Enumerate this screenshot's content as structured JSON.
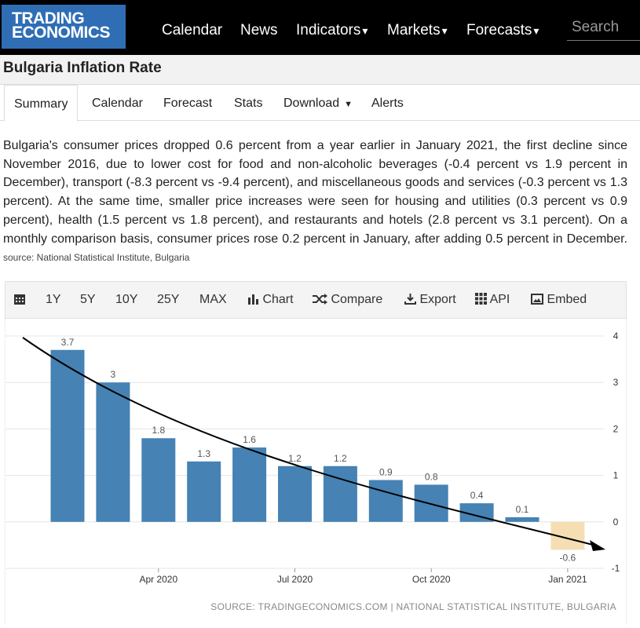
{
  "logo": {
    "line1": "TRADING",
    "line2": "ECONOMICS"
  },
  "nav": {
    "items": [
      "Calendar",
      "News",
      "Indicators",
      "Markets",
      "Forecasts"
    ],
    "caret": "▾",
    "search_placeholder": "Search"
  },
  "page_title": "Bulgaria Inflation Rate",
  "tabs": [
    "Summary",
    "Calendar",
    "Forecast",
    "Stats",
    "Download",
    "Alerts"
  ],
  "summary": {
    "text": "Bulgaria's consumer prices dropped 0.6 percent from a year earlier in January 2021, the first decline since November 2016, due to lower cost for food and non-alcoholic beverages (-0.4 percent vs 1.9 percent in December), transport (-8.3 percent vs -9.4 percent), and miscellaneous goods and services (-0.3 percent vs 1.3 percent). At the same time, smaller price increases were seen for housing and utilities (0.3 percent vs 0.9 percent), health (1.5 percent vs 1.8 percent), and restaurants and hotels (2.8 percent vs 3.1 percent). On a monthly comparison basis, consumer prices rose 0.2 percent in January, after adding 0.5 percent in December.",
    "source": "source: National Statistical Institute, Bulgaria"
  },
  "toolbar": {
    "ranges": [
      "1Y",
      "5Y",
      "10Y",
      "25Y",
      "MAX"
    ],
    "chart": "Chart",
    "compare": "Compare",
    "export": "Export",
    "api": "API",
    "embed": "Embed"
  },
  "colors": {
    "bar": "#4682b4",
    "bar_negative": "#f5deb3",
    "logo_bg": "#2f6eb5"
  },
  "chart_data": {
    "type": "bar",
    "categories": [
      "Feb 2020",
      "Mar 2020",
      "Apr 2020",
      "May 2020",
      "Jun 2020",
      "Jul 2020",
      "Aug 2020",
      "Sep 2020",
      "Oct 2020",
      "Nov 2020",
      "Dec 2020",
      "Jan 2021"
    ],
    "values": [
      3.7,
      3,
      1.8,
      1.3,
      1.6,
      1.2,
      1.2,
      0.9,
      0.8,
      0.4,
      0.1,
      -0.6
    ],
    "data_labels": [
      "3.7",
      "3",
      "1.8",
      "1.3",
      "1.6",
      "1.2",
      "1.2",
      "0.9",
      "0.8",
      "0.4",
      "0.1",
      "-0.6"
    ],
    "x_tick_labels": [
      "Apr 2020",
      "Jul 2020",
      "Oct 2020",
      "Jan 2021"
    ],
    "x_tick_categories": [
      "Apr 2020",
      "Jul 2020",
      "Oct 2020",
      "Jan 2021"
    ],
    "y_ticks": [
      4,
      3,
      2,
      1,
      0,
      -1
    ],
    "ylim": [
      -1,
      4
    ],
    "grid": true,
    "y_axis_side": "right",
    "trend_arrow": true,
    "source": "SOURCE: TRADINGECONOMICS.COM | NATIONAL STATISTICAL INSTITUTE, BULGARIA"
  }
}
